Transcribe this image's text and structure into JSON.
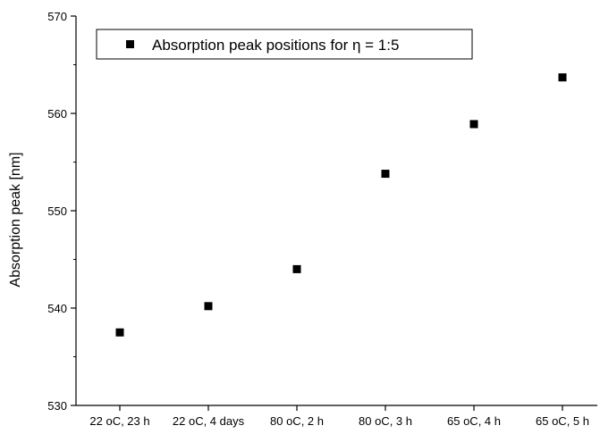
{
  "chart_data": {
    "type": "scatter",
    "title": "",
    "xlabel": "",
    "ylabel": "Absorption peak [nm]",
    "categories": [
      "22 oC, 23 h",
      "22 oC, 4 days",
      "80 oC, 2 h",
      "80 oC, 3 h",
      "65 oC, 4 h",
      "65 oC, 5 h"
    ],
    "series": [
      {
        "name": "Absorption peak positions for η = 1:5",
        "values": [
          537.5,
          540.2,
          544.0,
          553.8,
          558.9,
          563.7
        ],
        "marker": "square",
        "color": "#000000"
      }
    ],
    "ylim": [
      530,
      570
    ],
    "yticks": [
      530,
      540,
      550,
      560,
      570
    ],
    "legend_position": "top-left",
    "grid": false
  }
}
